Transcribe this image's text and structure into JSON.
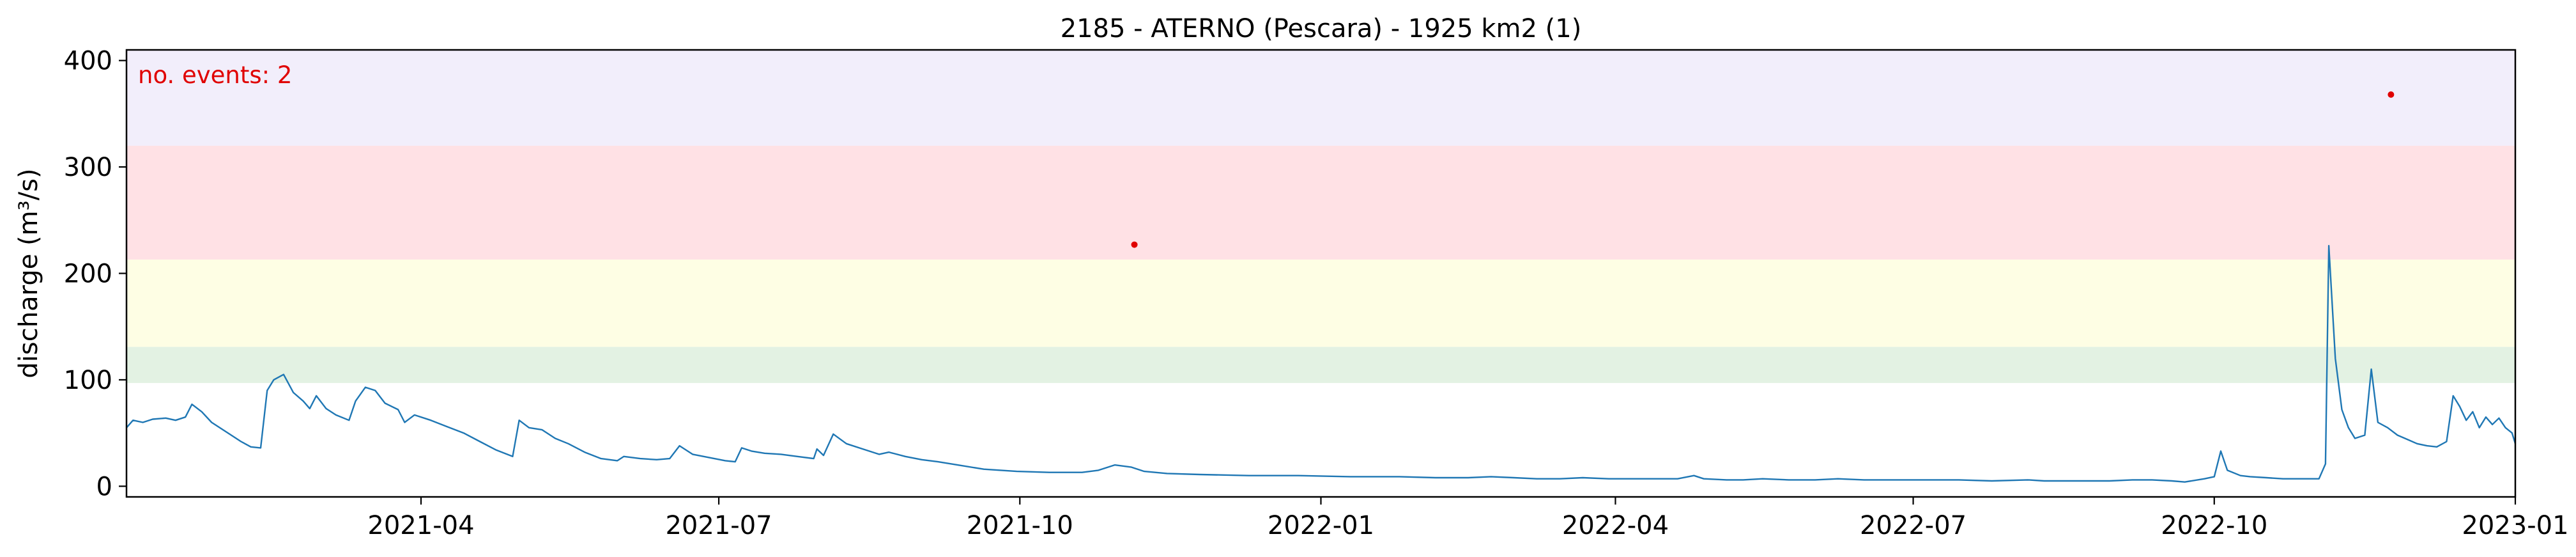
{
  "chart_data": {
    "type": "line",
    "title": "2185 - ATERNO (Pescara) - 1925 km2 (1)",
    "ylabel": "discharge (m³/s)",
    "xlabel": "",
    "xlim": [
      "2021-01-01",
      "2023-01-01"
    ],
    "ylim": [
      -10,
      410
    ],
    "yticks": [
      0,
      100,
      200,
      300,
      400
    ],
    "xticks": [
      "2021-04-01",
      "2021-07-01",
      "2021-10-01",
      "2022-01-01",
      "2022-04-01",
      "2022-07-01",
      "2022-10-01",
      "2023-01-01"
    ],
    "xtick_labels": [
      "2021-04",
      "2021-07",
      "2021-10",
      "2022-01",
      "2022-04",
      "2022-07",
      "2022-10",
      "2023-01"
    ],
    "grid": false,
    "line_color": "#1f77b4",
    "bands": [
      {
        "from": 97,
        "to": 131,
        "color": "#e3f2e3"
      },
      {
        "from": 131,
        "to": 213,
        "color": "#fefee4"
      },
      {
        "from": 213,
        "to": 320,
        "color": "#ffe1e5"
      },
      {
        "from": 320,
        "to": 410,
        "color": "#f2eefb"
      }
    ],
    "annotation": {
      "text": "no. events: 2",
      "color": "#e00000"
    },
    "events": [
      {
        "date": "2021-11-05",
        "value": 227
      },
      {
        "date": "2022-11-24",
        "value": 368
      }
    ],
    "series": [
      {
        "points": [
          [
            "2021-01-01",
            55
          ],
          [
            "2021-01-03",
            62
          ],
          [
            "2021-01-06",
            60
          ],
          [
            "2021-01-09",
            63
          ],
          [
            "2021-01-13",
            64
          ],
          [
            "2021-01-16",
            62
          ],
          [
            "2021-01-19",
            65
          ],
          [
            "2021-01-21",
            77
          ],
          [
            "2021-01-24",
            70
          ],
          [
            "2021-01-27",
            60
          ],
          [
            "2021-02-01",
            50
          ],
          [
            "2021-02-05",
            42
          ],
          [
            "2021-02-08",
            37
          ],
          [
            "2021-02-11",
            36
          ],
          [
            "2021-02-13",
            90
          ],
          [
            "2021-02-15",
            100
          ],
          [
            "2021-02-18",
            105
          ],
          [
            "2021-02-21",
            88
          ],
          [
            "2021-02-24",
            80
          ],
          [
            "2021-02-26",
            73
          ],
          [
            "2021-02-28",
            85
          ],
          [
            "2021-03-03",
            73
          ],
          [
            "2021-03-06",
            67
          ],
          [
            "2021-03-10",
            62
          ],
          [
            "2021-03-12",
            80
          ],
          [
            "2021-03-15",
            93
          ],
          [
            "2021-03-18",
            90
          ],
          [
            "2021-03-21",
            78
          ],
          [
            "2021-03-25",
            72
          ],
          [
            "2021-03-27",
            60
          ],
          [
            "2021-03-30",
            67
          ],
          [
            "2021-04-04",
            62
          ],
          [
            "2021-04-09",
            56
          ],
          [
            "2021-04-14",
            50
          ],
          [
            "2021-04-19",
            42
          ],
          [
            "2021-04-24",
            34
          ],
          [
            "2021-04-29",
            28
          ],
          [
            "2021-05-01",
            62
          ],
          [
            "2021-05-04",
            55
          ],
          [
            "2021-05-08",
            53
          ],
          [
            "2021-05-12",
            45
          ],
          [
            "2021-05-16",
            40
          ],
          [
            "2021-05-21",
            32
          ],
          [
            "2021-05-26",
            26
          ],
          [
            "2021-05-31",
            24
          ],
          [
            "2021-06-02",
            28
          ],
          [
            "2021-06-07",
            26
          ],
          [
            "2021-06-12",
            25
          ],
          [
            "2021-06-16",
            26
          ],
          [
            "2021-06-19",
            38
          ],
          [
            "2021-06-23",
            30
          ],
          [
            "2021-06-28",
            27
          ],
          [
            "2021-07-03",
            24
          ],
          [
            "2021-07-06",
            23
          ],
          [
            "2021-07-08",
            36
          ],
          [
            "2021-07-11",
            33
          ],
          [
            "2021-07-15",
            31
          ],
          [
            "2021-07-20",
            30
          ],
          [
            "2021-07-25",
            28
          ],
          [
            "2021-07-30",
            26
          ],
          [
            "2021-07-31",
            35
          ],
          [
            "2021-08-02",
            29
          ],
          [
            "2021-08-05",
            49
          ],
          [
            "2021-08-09",
            40
          ],
          [
            "2021-08-14",
            35
          ],
          [
            "2021-08-19",
            30
          ],
          [
            "2021-08-22",
            32
          ],
          [
            "2021-08-27",
            28
          ],
          [
            "2021-09-01",
            25
          ],
          [
            "2021-09-06",
            23
          ],
          [
            "2021-09-12",
            20
          ],
          [
            "2021-09-20",
            16
          ],
          [
            "2021-09-30",
            14
          ],
          [
            "2021-10-10",
            13
          ],
          [
            "2021-10-20",
            13
          ],
          [
            "2021-10-25",
            15
          ],
          [
            "2021-10-30",
            20
          ],
          [
            "2021-11-04",
            18
          ],
          [
            "2021-11-08",
            14
          ],
          [
            "2021-11-15",
            12
          ],
          [
            "2021-11-25",
            11
          ],
          [
            "2021-12-10",
            10
          ],
          [
            "2021-12-25",
            10
          ],
          [
            "2022-01-10",
            9
          ],
          [
            "2022-01-25",
            9
          ],
          [
            "2022-02-05",
            8
          ],
          [
            "2022-02-15",
            8
          ],
          [
            "2022-02-22",
            9
          ],
          [
            "2022-03-01",
            8
          ],
          [
            "2022-03-08",
            7
          ],
          [
            "2022-03-15",
            7
          ],
          [
            "2022-03-22",
            8
          ],
          [
            "2022-03-30",
            7
          ],
          [
            "2022-04-10",
            7
          ],
          [
            "2022-04-20",
            7
          ],
          [
            "2022-04-25",
            10
          ],
          [
            "2022-04-28",
            7
          ],
          [
            "2022-05-05",
            6
          ],
          [
            "2022-05-10",
            6
          ],
          [
            "2022-05-16",
            7
          ],
          [
            "2022-05-24",
            6
          ],
          [
            "2022-06-01",
            6
          ],
          [
            "2022-06-08",
            7
          ],
          [
            "2022-06-16",
            6
          ],
          [
            "2022-06-25",
            6
          ],
          [
            "2022-07-05",
            6
          ],
          [
            "2022-07-15",
            6
          ],
          [
            "2022-07-25",
            5
          ],
          [
            "2022-08-05",
            6
          ],
          [
            "2022-08-10",
            5
          ],
          [
            "2022-08-17",
            5
          ],
          [
            "2022-08-25",
            5
          ],
          [
            "2022-08-30",
            5
          ],
          [
            "2022-09-06",
            6
          ],
          [
            "2022-09-12",
            6
          ],
          [
            "2022-09-18",
            5
          ],
          [
            "2022-09-22",
            4
          ],
          [
            "2022-09-28",
            7
          ],
          [
            "2022-10-01",
            9
          ],
          [
            "2022-10-03",
            33
          ],
          [
            "2022-10-05",
            15
          ],
          [
            "2022-10-09",
            10
          ],
          [
            "2022-10-12",
            9
          ],
          [
            "2022-10-17",
            8
          ],
          [
            "2022-10-22",
            7
          ],
          [
            "2022-10-27",
            7
          ],
          [
            "2022-11-02",
            7
          ],
          [
            "2022-11-04",
            21
          ],
          [
            "2022-11-05",
            226
          ],
          [
            "2022-11-07",
            120
          ],
          [
            "2022-11-09",
            72
          ],
          [
            "2022-11-11",
            55
          ],
          [
            "2022-11-13",
            45
          ],
          [
            "2022-11-16",
            48
          ],
          [
            "2022-11-18",
            110
          ],
          [
            "2022-11-20",
            60
          ],
          [
            "2022-11-23",
            55
          ],
          [
            "2022-11-26",
            48
          ],
          [
            "2022-11-29",
            44
          ],
          [
            "2022-12-02",
            40
          ],
          [
            "2022-12-05",
            38
          ],
          [
            "2022-12-08",
            37
          ],
          [
            "2022-12-11",
            42
          ],
          [
            "2022-12-13",
            85
          ],
          [
            "2022-12-15",
            75
          ],
          [
            "2022-12-17",
            62
          ],
          [
            "2022-12-19",
            70
          ],
          [
            "2022-12-21",
            55
          ],
          [
            "2022-12-23",
            65
          ],
          [
            "2022-12-25",
            58
          ],
          [
            "2022-12-27",
            64
          ],
          [
            "2022-12-29",
            55
          ],
          [
            "2022-12-31",
            50
          ],
          [
            "2023-01-01",
            40
          ]
        ]
      }
    ]
  }
}
